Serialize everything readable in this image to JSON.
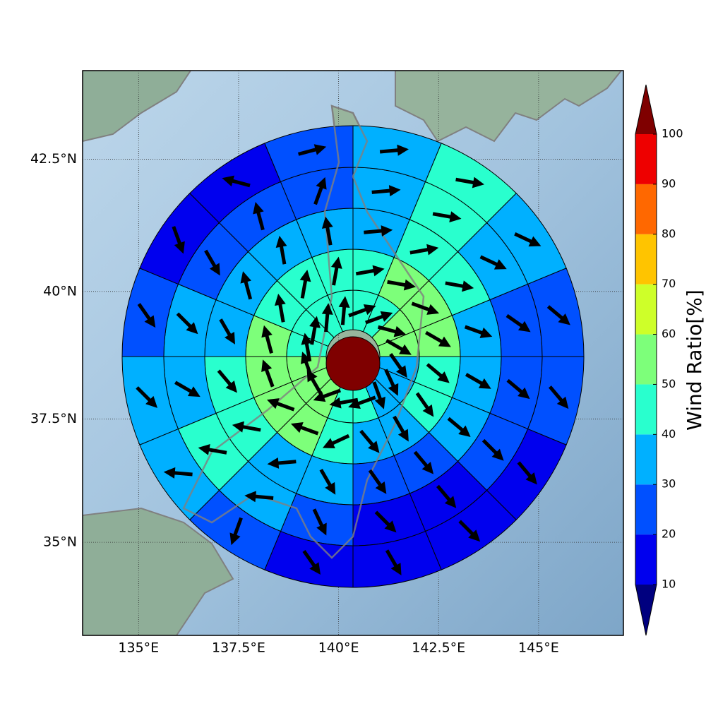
{
  "chart_data": {
    "type": "wind-rose-map",
    "xlim": [
      133.6,
      147.12
    ],
    "ylim": [
      33.06,
      44.12
    ],
    "xticks": [
      {
        "value": 135,
        "label": "135°E"
      },
      {
        "value": 137.5,
        "label": "137.5°E"
      },
      {
        "value": 140,
        "label": "140°E"
      },
      {
        "value": 142.5,
        "label": "142.5°E"
      },
      {
        "value": 145,
        "label": "145°E"
      }
    ],
    "yticks": [
      {
        "value": 35,
        "label": "35°N"
      },
      {
        "value": 37.5,
        "label": "37.5°N"
      },
      {
        "value": 40,
        "label": "40°N"
      },
      {
        "value": 42.5,
        "label": "42.5°N"
      }
    ],
    "grid": true,
    "center_value": 105,
    "rings": [
      {
        "values": [
          45,
          45,
          55,
          55,
          35,
          35,
          35,
          45,
          45,
          55,
          55,
          55,
          45,
          45,
          45,
          45
        ],
        "directions": [
          70,
          70,
          105,
          120,
          145,
          155,
          160,
          250,
          260,
          250,
          330,
          340,
          350,
          10,
          5,
          5
        ]
      },
      {
        "values": [
          45,
          55,
          55,
          55,
          45,
          45,
          35,
          35,
          45,
          55,
          55,
          55,
          55,
          45,
          45,
          45
        ],
        "directions": [
          80,
          100,
          110,
          120,
          130,
          145,
          150,
          140,
          245,
          290,
          290,
          340,
          345,
          350,
          10,
          10
        ]
      },
      {
        "values": [
          35,
          45,
          45,
          35,
          35,
          35,
          25,
          25,
          35,
          35,
          45,
          45,
          35,
          35,
          35,
          35
        ],
        "directions": [
          85,
          80,
          100,
          110,
          120,
          130,
          140,
          145,
          150,
          265,
          280,
          140,
          150,
          345,
          350,
          350
        ]
      },
      {
        "values": [
          35,
          45,
          35,
          25,
          25,
          25,
          15,
          15,
          25,
          35,
          45,
          35,
          35,
          25,
          25,
          25
        ],
        "directions": [
          85,
          100,
          115,
          125,
          130,
          135,
          140,
          135,
          155,
          275,
          280,
          120,
          135,
          150,
          345,
          20
        ]
      },
      {
        "values": [
          35,
          45,
          35,
          25,
          25,
          15,
          15,
          15,
          15,
          25,
          35,
          35,
          25,
          15,
          15,
          25
        ],
        "directions": [
          85,
          100,
          115,
          130,
          140,
          140,
          135,
          150,
          145,
          200,
          275,
          135,
          145,
          160,
          285,
          75
        ]
      }
    ],
    "colorbar": {
      "label": "Wind Ratio[%]",
      "levels": [
        10,
        20,
        30,
        40,
        50,
        60,
        70,
        80,
        90,
        100
      ],
      "colors": [
        "#0000ee",
        "#0050ff",
        "#00b0ff",
        "#29ffce",
        "#7dff7a",
        "#ceff29",
        "#ffc400",
        "#ff6800",
        "#ee0000"
      ],
      "under": "#00007f",
      "over": "#7f0000"
    }
  }
}
